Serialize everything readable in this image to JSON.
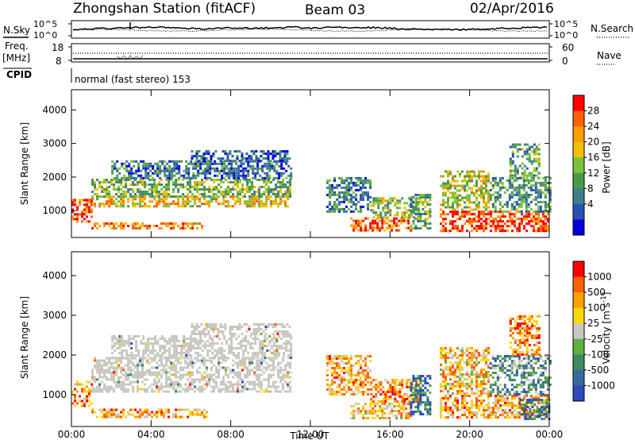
{
  "header": {
    "station": "Zhongshan Station (fitACF)",
    "beam": "Beam 03",
    "date": "02/Apr/2016"
  },
  "summary": {
    "nsky_label": "N.Sky",
    "nsearch_label": "N.Search",
    "nsky_tick_top": "10^5",
    "nsky_tick_bottom": "10^0",
    "nsearch_tick_top": "10^5",
    "nsearch_tick_bottom": "10^0",
    "freq_label_top": "Freq.",
    "freq_label_unit": "[MHz]",
    "freq_ticks": [
      "18",
      "8"
    ],
    "nave_label": "Nave",
    "nave_ticks": [
      "60",
      "0"
    ],
    "cpid_label": "CPID",
    "cpid_text": "normal (fast stereo) 153"
  },
  "colors": {
    "power": [
      "#0000dd",
      "#2a50b4",
      "#3e7e8a",
      "#4a9a4a",
      "#7cc23a",
      "#f0c000",
      "#ff9c00",
      "#ff6000",
      "#ff0000"
    ],
    "velocity": [
      "#2d49c0",
      "#3a6a9c",
      "#3f8a60",
      "#60b040",
      "#c8c8c0",
      "#ffd800",
      "#ffa000",
      "#ff6000",
      "#ff0000"
    ],
    "ground_scatter": "#c8c8c0"
  },
  "chart_data": [
    {
      "type": "heatmap",
      "panel": "power",
      "xlabel": "",
      "ylabel": "Slant Range [km]",
      "x_unit": "hours UT",
      "xlim": [
        0,
        24
      ],
      "ylim": [
        200,
        4600
      ],
      "x_ticks": [
        0,
        4,
        8,
        12,
        16,
        20,
        24
      ],
      "y_ticks": [
        1000,
        2000,
        3000,
        4000
      ],
      "y_tick_labels": [
        "1000",
        "2000",
        "3000",
        "4000"
      ],
      "colorbar": {
        "label": "Power [dB]",
        "range": [
          0,
          30
        ],
        "ticks": [
          "28",
          "24",
          "20",
          "16",
          "12",
          "8",
          "4"
        ]
      },
      "regions": [
        {
          "t": [
            0.0,
            1.0
          ],
          "r": [
            700,
            1350
          ],
          "level": 0.85
        },
        {
          "t": [
            1.0,
            6.8
          ],
          "r": [
            450,
            650
          ],
          "level": 0.75
        },
        {
          "t": [
            1.0,
            11.0
          ],
          "r": [
            1100,
            1450
          ],
          "level": 0.65
        },
        {
          "t": [
            1.0,
            11.0
          ],
          "r": [
            1450,
            1950
          ],
          "level": 0.45
        },
        {
          "t": [
            2.0,
            11.0
          ],
          "r": [
            1950,
            2500
          ],
          "level": 0.25
        },
        {
          "t": [
            6.0,
            11.0
          ],
          "r": [
            2500,
            2800
          ],
          "level": 0.2
        },
        {
          "t": [
            12.8,
            15.0
          ],
          "r": [
            1000,
            2000
          ],
          "level": 0.3
        },
        {
          "t": [
            14.0,
            17.0
          ],
          "r": [
            400,
            800
          ],
          "level": 0.85
        },
        {
          "t": [
            15.0,
            17.5
          ],
          "r": [
            800,
            1400
          ],
          "level": 0.5
        },
        {
          "t": [
            17.0,
            18.0
          ],
          "r": [
            500,
            1500
          ],
          "level": 0.4
        },
        {
          "t": [
            18.5,
            24.0
          ],
          "r": [
            400,
            1000
          ],
          "level": 0.9
        },
        {
          "t": [
            18.5,
            21.0
          ],
          "r": [
            1000,
            2200
          ],
          "level": 0.55
        },
        {
          "t": [
            21.0,
            24.0
          ],
          "r": [
            1000,
            2000
          ],
          "level": 0.35
        },
        {
          "t": [
            22.0,
            23.5
          ],
          "r": [
            2000,
            3000
          ],
          "level": 0.4
        }
      ]
    },
    {
      "type": "heatmap",
      "panel": "velocity",
      "xlabel": "Time UT",
      "ylabel": "Slant Range [km]",
      "x_unit": "hours UT",
      "xlim": [
        0,
        24
      ],
      "ylim": [
        200,
        4600
      ],
      "x_ticks": [
        0,
        4,
        8,
        12,
        16,
        20,
        24
      ],
      "x_tick_labels": [
        "00:00",
        "04:00",
        "08:00",
        "12:00",
        "16:00",
        "20:00",
        "00:00"
      ],
      "y_ticks": [
        1000,
        2000,
        3000,
        4000
      ],
      "y_tick_labels": [
        "1000",
        "2000",
        "3000",
        "4000"
      ],
      "colorbar": {
        "label": "Velocity [m s^-1]",
        "ticks": [
          "1000",
          "500",
          "100",
          "25",
          "-25",
          "-100",
          "-500",
          "-1000"
        ]
      },
      "regions": [
        {
          "t": [
            0.0,
            1.0
          ],
          "r": [
            700,
            1350
          ],
          "level": 0.75
        },
        {
          "t": [
            1.0,
            6.8
          ],
          "r": [
            450,
            650
          ],
          "level": 0.7
        },
        {
          "t": [
            1.0,
            11.0
          ],
          "r": [
            1100,
            1950
          ],
          "level": -1
        },
        {
          "t": [
            2.0,
            11.0
          ],
          "r": [
            1950,
            2500
          ],
          "level": -1
        },
        {
          "t": [
            6.0,
            11.0
          ],
          "r": [
            2500,
            2800
          ],
          "level": -1
        },
        {
          "t": [
            12.8,
            15.0
          ],
          "r": [
            1000,
            2000
          ],
          "level": 0.7
        },
        {
          "t": [
            14.0,
            17.0
          ],
          "r": [
            400,
            800
          ],
          "level": 0.65
        },
        {
          "t": [
            15.0,
            17.5
          ],
          "r": [
            800,
            1400
          ],
          "level": 0.75
        },
        {
          "t": [
            17.0,
            18.0
          ],
          "r": [
            500,
            1500
          ],
          "level": 0.2
        },
        {
          "t": [
            18.5,
            24.0
          ],
          "r": [
            400,
            1000
          ],
          "level": 0.7
        },
        {
          "t": [
            18.5,
            21.0
          ],
          "r": [
            1000,
            2200
          ],
          "level": 0.65
        },
        {
          "t": [
            21.0,
            24.0
          ],
          "r": [
            1000,
            2000
          ],
          "level": 0.3
        },
        {
          "t": [
            22.0,
            23.5
          ],
          "r": [
            2000,
            3000
          ],
          "level": 0.75
        },
        {
          "t": [
            22.5,
            24.0
          ],
          "r": [
            400,
            900
          ],
          "level": 0.2
        }
      ]
    }
  ]
}
